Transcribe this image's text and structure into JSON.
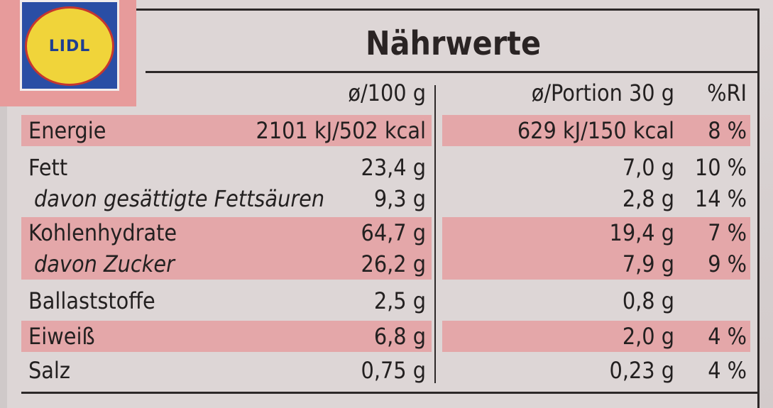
{
  "brand": {
    "logo_text": "LIDL"
  },
  "title": "Nährwerte",
  "columns": {
    "per100": "ø/100 g",
    "portion": "ø/Portion 30 g",
    "ri": "%RI"
  },
  "rows": [
    {
      "label": "Energie",
      "per100": "2101 kJ/502 kcal",
      "portion": "629 kJ/150 kcal",
      "ri": "8 %",
      "sub": false,
      "shaded": true
    },
    {
      "label": "Fett",
      "per100": "23,4 g",
      "portion": "7,0 g",
      "ri": "10 %",
      "sub": false,
      "shaded": false
    },
    {
      "label": "davon gesättigte Fettsäuren",
      "per100": "9,3 g",
      "portion": "2,8 g",
      "ri": "14 %",
      "sub": true,
      "shaded": false
    },
    {
      "label": "Kohlenhydrate",
      "per100": "64,7 g",
      "portion": "19,4 g",
      "ri": "7 %",
      "sub": false,
      "shaded": true
    },
    {
      "label": "davon Zucker",
      "per100": "26,2 g",
      "portion": "7,9 g",
      "ri": "9 %",
      "sub": true,
      "shaded": true
    },
    {
      "label": "Ballaststoffe",
      "per100": "2,5 g",
      "portion": "0,8 g",
      "ri": "",
      "sub": false,
      "shaded": false
    },
    {
      "label": "Eiweiß",
      "per100": "6,8 g",
      "portion": "2,0 g",
      "ri": "4 %",
      "sub": false,
      "shaded": true
    },
    {
      "label": "Salz",
      "per100": "0,75 g",
      "portion": "0,23 g",
      "ri": "4 %",
      "sub": false,
      "shaded": false
    }
  ],
  "colors": {
    "band": "#e4a7a9",
    "logo_blue": "#2a4ea5",
    "logo_yellow": "#f0d43a",
    "logo_red": "#c6362f"
  }
}
